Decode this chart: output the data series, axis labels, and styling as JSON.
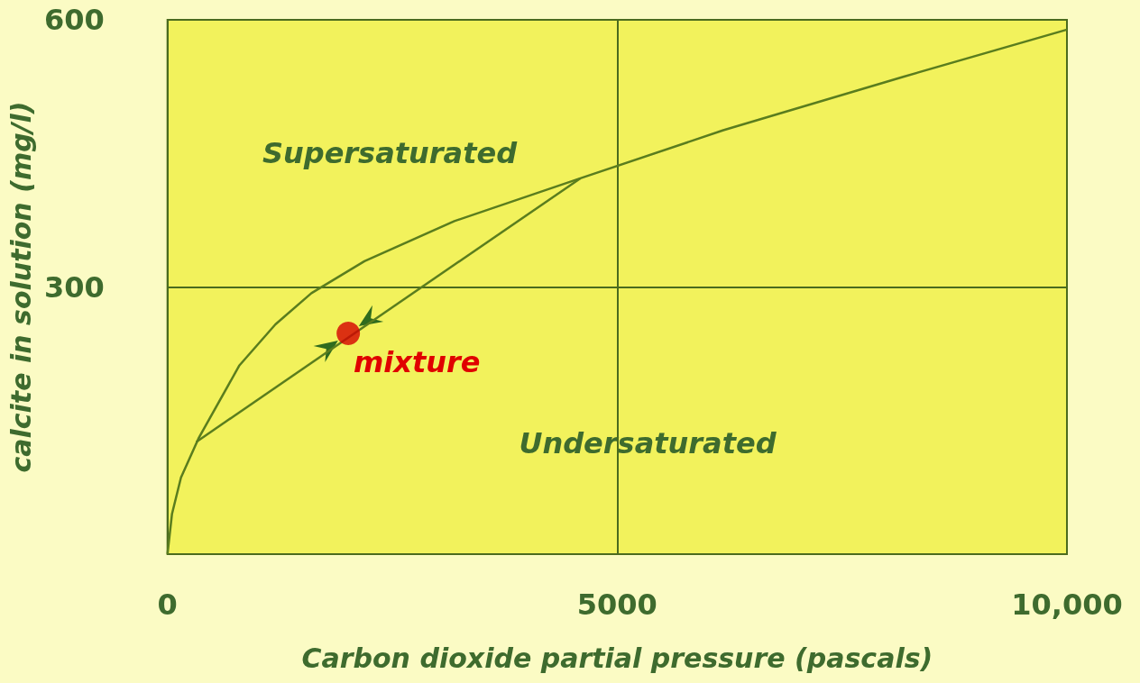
{
  "chart_data": {
    "type": "line",
    "xlabel": "Carbon dioxide partial pressure (pascals)",
    "ylabel": "calcite in solution (mg/l)",
    "xlim": [
      0,
      10000
    ],
    "ylim": [
      0,
      600
    ],
    "xticks": [
      0,
      5000,
      {
        "value": 10000,
        "label": "10,000"
      }
    ],
    "yticks": [
      {
        "value": 0,
        "label": null
      },
      300,
      600
    ],
    "grid": true,
    "marker": "none",
    "series": [
      {
        "color": "#5a7d1e",
        "x": [
          0,
          50,
          150,
          350,
          800,
          1200,
          1600,
          2190,
          3190,
          4590,
          6180,
          8180,
          10000
        ],
        "values": [
          0,
          45,
          86,
          131,
          212,
          258,
          293,
          329,
          374,
          422,
          476,
          536,
          589
        ]
      },
      {
        "color": "#5a7d1e",
        "x": [
          320,
          4590
        ],
        "values": [
          126,
          422
        ]
      },
      {
        "type": "scatter",
        "marker": "circle",
        "color": "#d40000",
        "x": [
          2010
        ],
        "values": [
          248
        ]
      }
    ],
    "annotations": [
      "Supersaturated",
      "Undersaturated",
      "mixture"
    ]
  }
}
